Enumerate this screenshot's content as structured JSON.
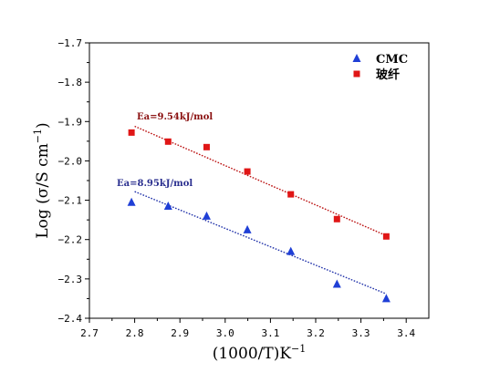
{
  "chart_data": {
    "type": "scatter",
    "xlabel": "(1000/T)K",
    "xlabel_sup": "-1",
    "ylabel": "Log (σ/S cm",
    "ylabel_sup": "-1",
    "ylabel_end": ")",
    "xlim": [
      2.7,
      3.45
    ],
    "ylim": [
      -2.4,
      -1.7
    ],
    "xticks": [
      "2.7",
      "2.8",
      "2.9",
      "3.0",
      "3.1",
      "3.2",
      "3.3",
      "3.4"
    ],
    "yticks": [
      "-1.7",
      "-1.8",
      "-1.9",
      "-2.0",
      "-2.1",
      "-2.2",
      "-2.3",
      "-2.4"
    ],
    "legend_position": "top-right",
    "series": [
      {
        "name": "CMC",
        "color": "#1f3fd6",
        "marker": "triangle",
        "x": [
          2.793,
          2.874,
          2.959,
          3.049,
          3.145,
          3.247,
          3.356
        ],
        "y": [
          -2.105,
          -2.115,
          -2.14,
          -2.175,
          -2.23,
          -2.313,
          -2.35
        ],
        "fit": {
          "x": [
            2.8,
            3.356
          ],
          "y": [
            -2.078,
            -2.338
          ],
          "color": "#2233aa"
        },
        "annotation": {
          "text": "Ea=8.95kJ/mol",
          "color": "#2a2f8f"
        }
      },
      {
        "name": "玻纤",
        "color": "#e01616",
        "marker": "square",
        "x": [
          2.793,
          2.874,
          2.959,
          3.049,
          3.145,
          3.247,
          3.356
        ],
        "y": [
          -1.928,
          -1.951,
          -1.965,
          -2.027,
          -2.085,
          -2.148,
          -2.192
        ],
        "fit": {
          "x": [
            2.8,
            3.356
          ],
          "y": [
            -1.912,
            -2.19
          ],
          "color": "#bb1111"
        },
        "annotation": {
          "text": "Ea=9.54kJ/mol",
          "color": "#8a1010"
        }
      }
    ]
  }
}
